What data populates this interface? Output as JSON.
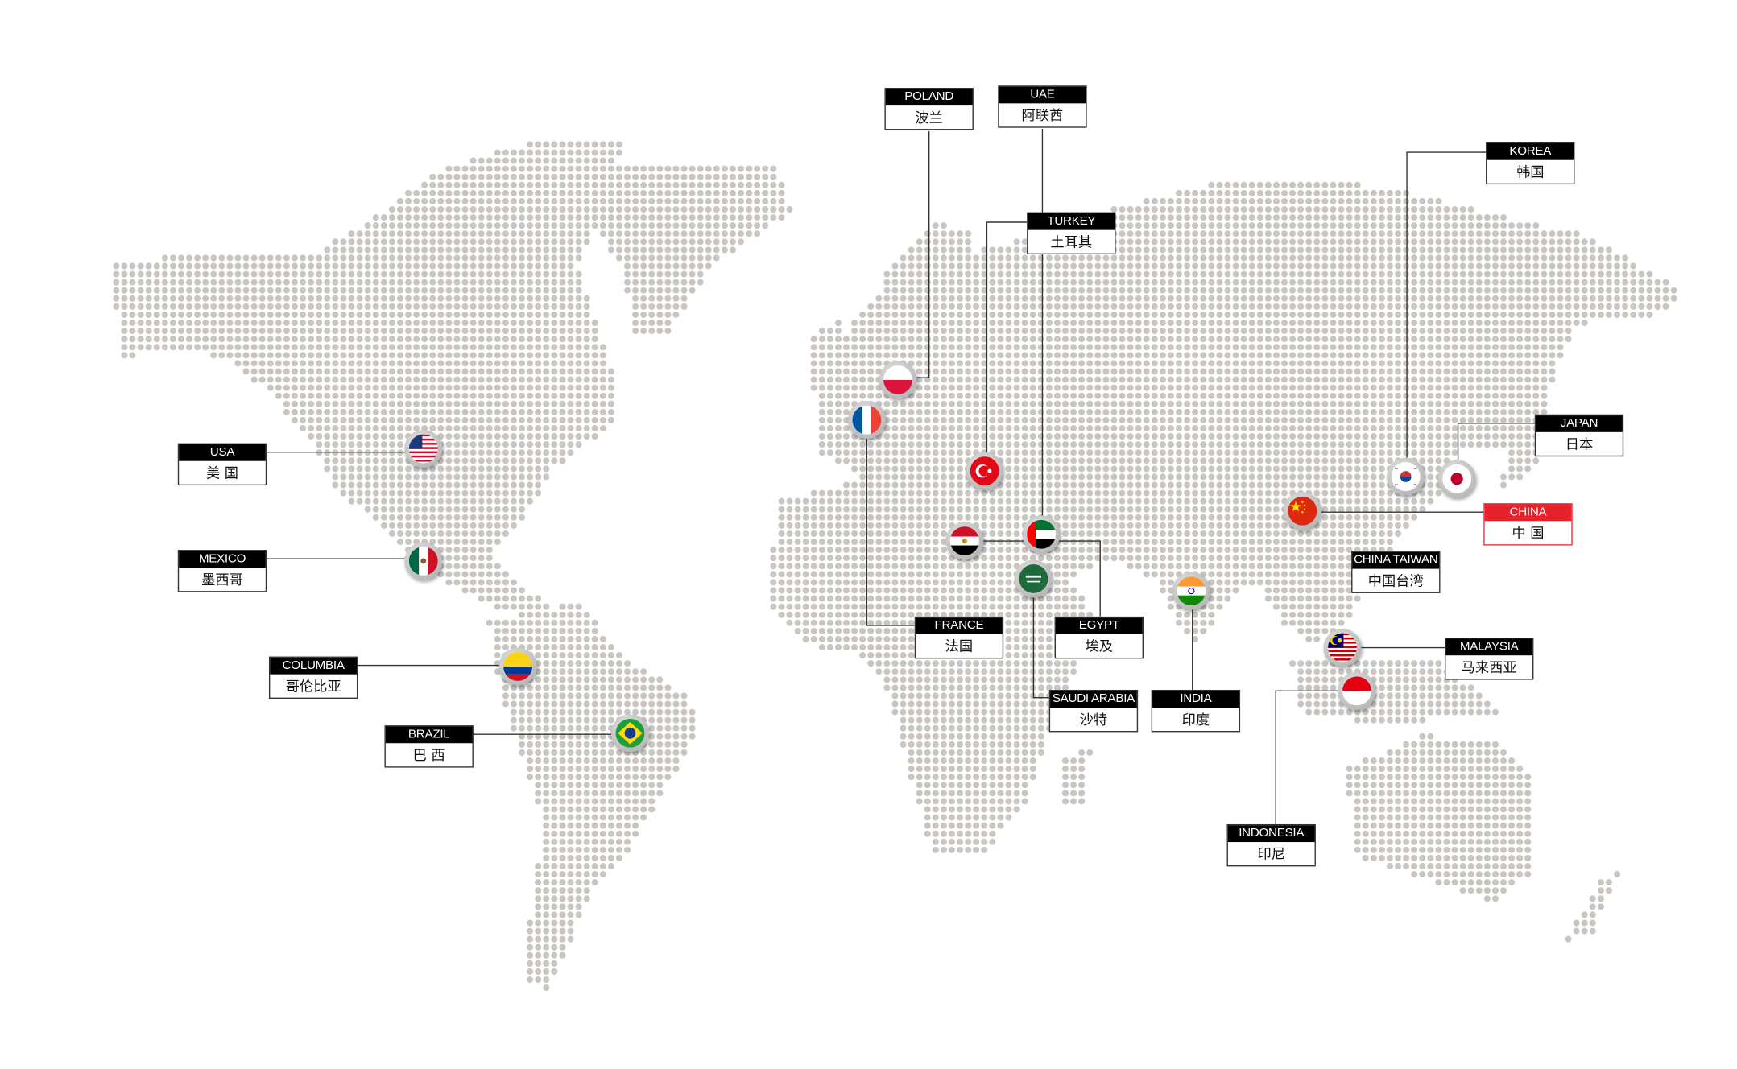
{
  "map": {
    "dot_color": "#c9c6c2",
    "line_color": "#333333",
    "highlight_color": "#e8202a"
  },
  "locations": [
    {
      "id": "usa",
      "en": "USA",
      "zh": "美 国",
      "flag": "us-flag-icon"
    },
    {
      "id": "mexico",
      "en": "MEXICO",
      "zh": "墨西哥",
      "flag": "mx-flag-icon"
    },
    {
      "id": "columbia",
      "en": "COLUMBIA",
      "zh": "哥伦比亚",
      "flag": "co-flag-icon"
    },
    {
      "id": "brazil",
      "en": "BRAZIL",
      "zh": "巴 西",
      "flag": "br-flag-icon"
    },
    {
      "id": "poland",
      "en": "POLAND",
      "zh": "波兰",
      "flag": "pl-flag-icon"
    },
    {
      "id": "uae",
      "en": "UAE",
      "zh": "阿联酋",
      "flag": "ae-flag-icon"
    },
    {
      "id": "turkey",
      "en": "TURKEY",
      "zh": "土耳其",
      "flag": "tr-flag-icon"
    },
    {
      "id": "france",
      "en": "FRANCE",
      "zh": "法国",
      "flag": "fr-flag-icon"
    },
    {
      "id": "egypt",
      "en": "EGYPT",
      "zh": "埃及",
      "flag": "eg-flag-icon"
    },
    {
      "id": "saudi",
      "en": "SAUDI ARABIA",
      "zh": "沙特",
      "flag": "sa-flag-icon"
    },
    {
      "id": "india",
      "en": "INDIA",
      "zh": "印度",
      "flag": "in-flag-icon"
    },
    {
      "id": "korea",
      "en": "KOREA",
      "zh": "韩国",
      "flag": "kr-flag-icon"
    },
    {
      "id": "japan",
      "en": "JAPAN",
      "zh": "日本",
      "flag": "jp-flag-icon"
    },
    {
      "id": "china",
      "en": "CHINA",
      "zh": "中 国",
      "flag": "cn-flag-icon",
      "highlight": true
    },
    {
      "id": "taiwan",
      "en": "CHINA TAIWAN",
      "zh": "中国台湾"
    },
    {
      "id": "malaysia",
      "en": "MALAYSIA",
      "zh": "马来西亚",
      "flag": "my-flag-icon"
    },
    {
      "id": "indonesia",
      "en": "INDONESIA",
      "zh": "印尼",
      "flag": "id-flag-icon"
    }
  ]
}
